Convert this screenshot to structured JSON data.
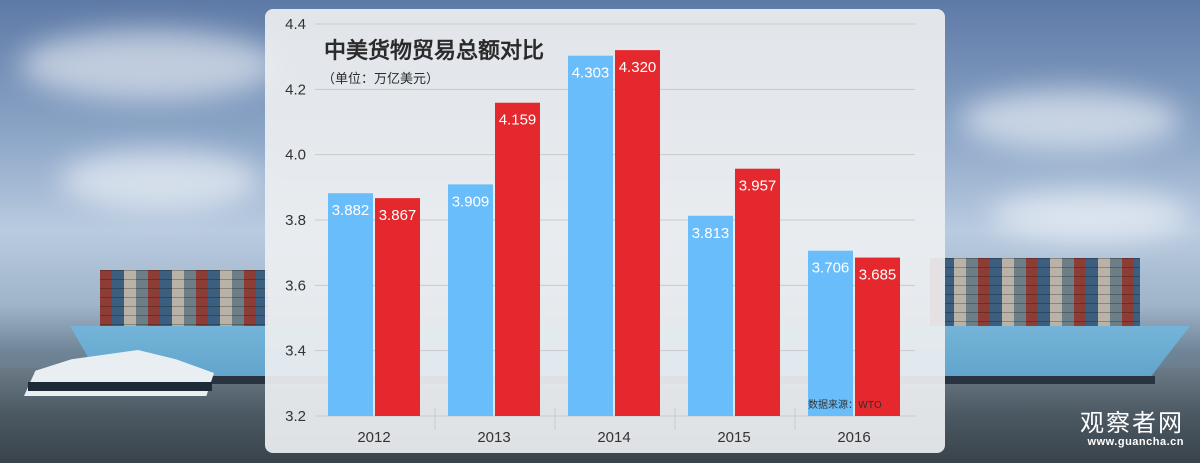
{
  "chart_data": {
    "type": "bar",
    "title": "中美货物贸易总额对比",
    "subtitle": "（单位：万亿美元）",
    "categories": [
      "2012",
      "2013",
      "2014",
      "2015",
      "2016"
    ],
    "series": [
      {
        "color": "#69bdfb",
        "values": [
          3.882,
          3.909,
          4.303,
          3.813,
          3.706
        ],
        "labels": [
          "3.882",
          "3.909",
          "4.303",
          "3.813",
          "3.706"
        ]
      },
      {
        "color": "#e5282e",
        "values": [
          3.867,
          4.159,
          4.32,
          3.957,
          3.685
        ],
        "labels": [
          "3.867",
          "4.159",
          "4.320",
          "3.957",
          "3.685"
        ]
      }
    ],
    "ylim": [
      3.2,
      4.4
    ],
    "yticks": [
      "3.2",
      "3.4",
      "3.6",
      "3.8",
      "4.0",
      "4.2",
      "4.4"
    ],
    "grid": true,
    "source": "数据来源：WTO"
  },
  "watermark": {
    "name": "观察者网",
    "url": "www.guancha.cn"
  }
}
